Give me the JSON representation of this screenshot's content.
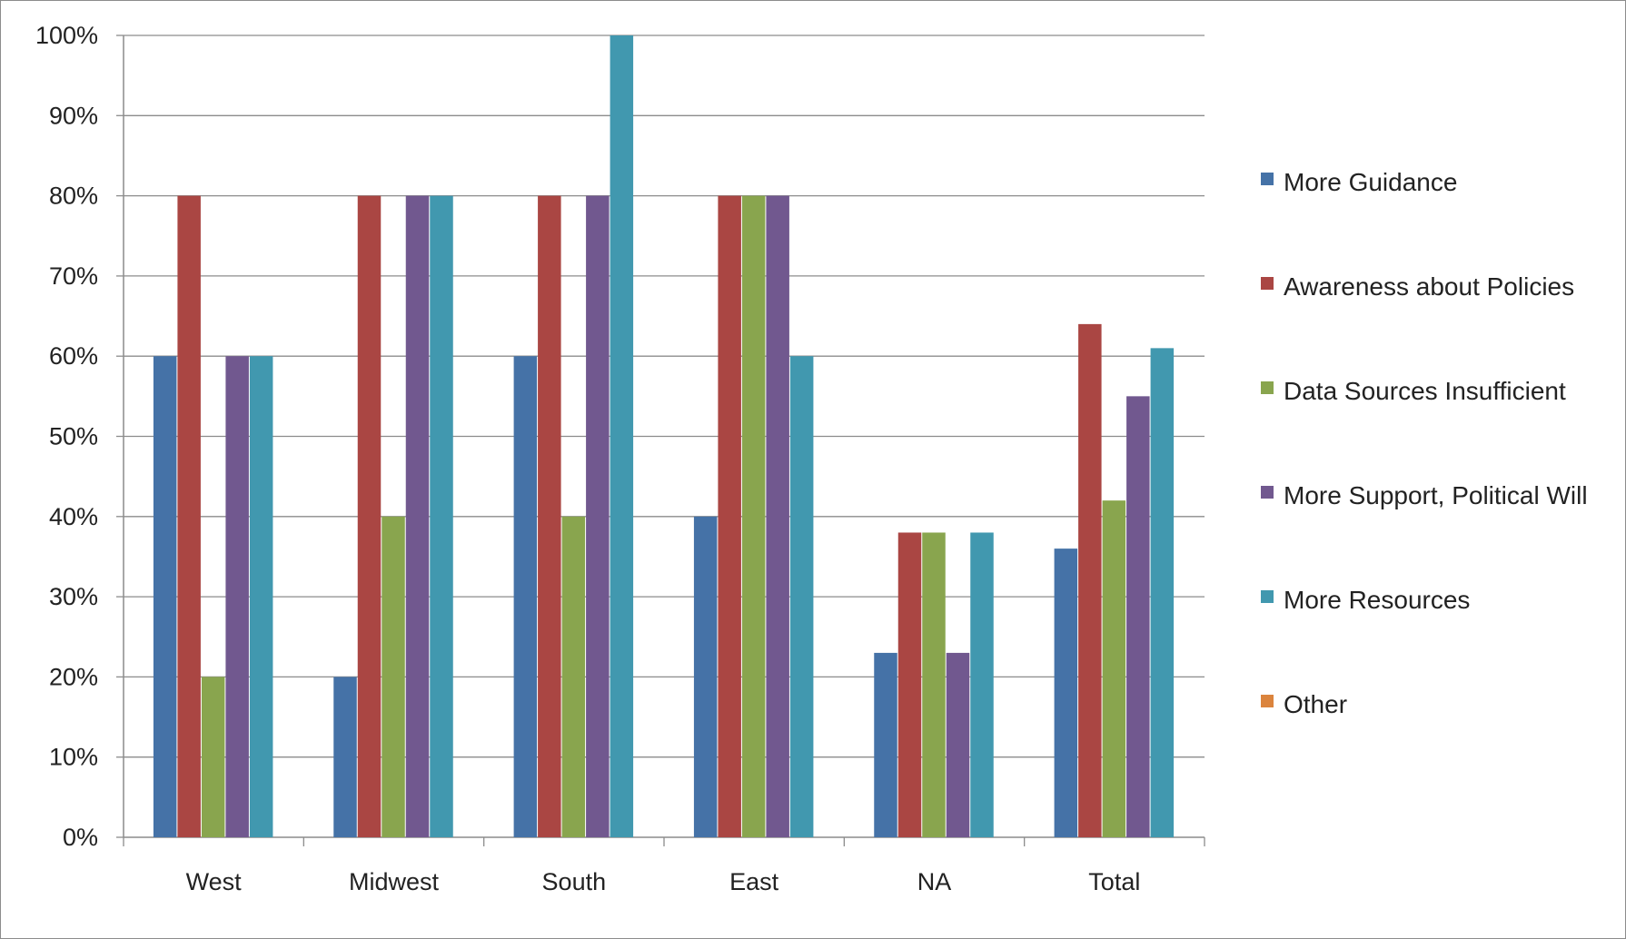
{
  "chart_data": {
    "type": "bar",
    "title": "",
    "xlabel": "",
    "ylabel": "",
    "ylim": [
      0,
      100
    ],
    "y_ticks": [
      "0%",
      "10%",
      "20%",
      "30%",
      "40%",
      "50%",
      "60%",
      "70%",
      "80%",
      "90%",
      "100%"
    ],
    "grid": true,
    "legend_position": "right",
    "categories": [
      "West",
      "Midwest",
      "South",
      "East",
      "NA",
      "Total"
    ],
    "series": [
      {
        "name": "More Guidance",
        "color": "#4572A7",
        "values": [
          60,
          20,
          60,
          40,
          23,
          36
        ]
      },
      {
        "name": "Awareness about Policies",
        "color": "#AA4643",
        "values": [
          80,
          80,
          80,
          80,
          38,
          64
        ]
      },
      {
        "name": "Data Sources Insufficient",
        "color": "#89A54E",
        "values": [
          20,
          40,
          40,
          80,
          38,
          42
        ]
      },
      {
        "name": "More Support, Political Will",
        "color": "#71588F",
        "values": [
          60,
          80,
          80,
          80,
          23,
          55
        ]
      },
      {
        "name": "More Resources",
        "color": "#4198AF",
        "values": [
          60,
          80,
          100,
          60,
          38,
          61
        ]
      },
      {
        "name": "Other",
        "color": "#DB843D",
        "values": [
          0,
          0,
          0,
          0,
          0,
          0
        ]
      }
    ]
  }
}
